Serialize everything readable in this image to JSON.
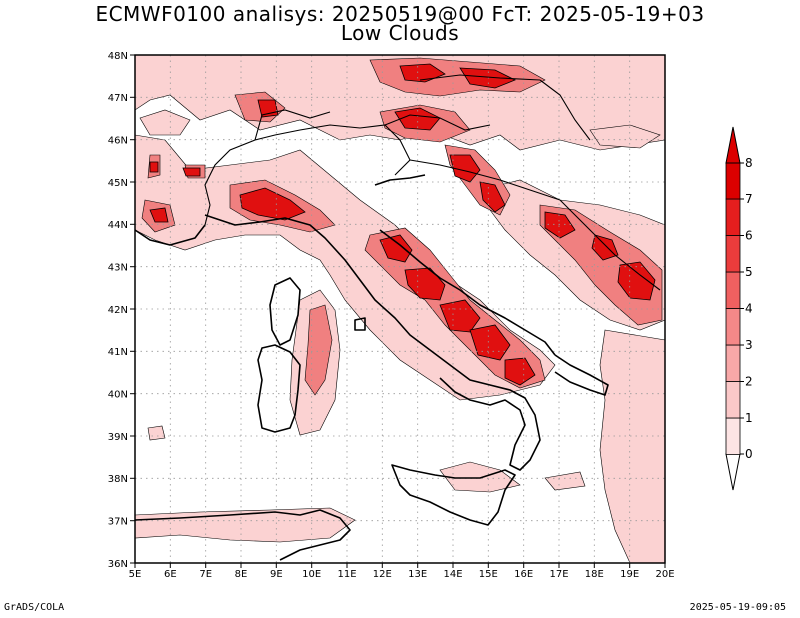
{
  "header": {
    "title_line1": "ECMWF0100 analisys: 20250519@00 FcT: 2025-05-19+03",
    "title_line2": "Low Clouds"
  },
  "map": {
    "lon_ticks": [
      "5E",
      "6E",
      "7E",
      "8E",
      "9E",
      "10E",
      "11E",
      "12E",
      "13E",
      "14E",
      "15E",
      "16E",
      "17E",
      "18E",
      "19E",
      "20E"
    ],
    "lat_ticks": [
      "48N",
      "47N",
      "46N",
      "45N",
      "44N",
      "43N",
      "42N",
      "41N",
      "40N",
      "39N",
      "38N",
      "37N",
      "36N"
    ],
    "grid": true
  },
  "colorbar": {
    "levels": [
      "8",
      "7",
      "6",
      "5",
      "4",
      "3",
      "2",
      "1",
      "0"
    ],
    "colors": [
      "#fde4e4",
      "#fbc8c8",
      "#f8a8a8",
      "#f58888",
      "#f06060",
      "#eb3c3c",
      "#e51e1e",
      "#dc0000"
    ]
  },
  "footer": {
    "left": "GrADS/COLA",
    "right": "2025-05-19-09:05"
  }
}
